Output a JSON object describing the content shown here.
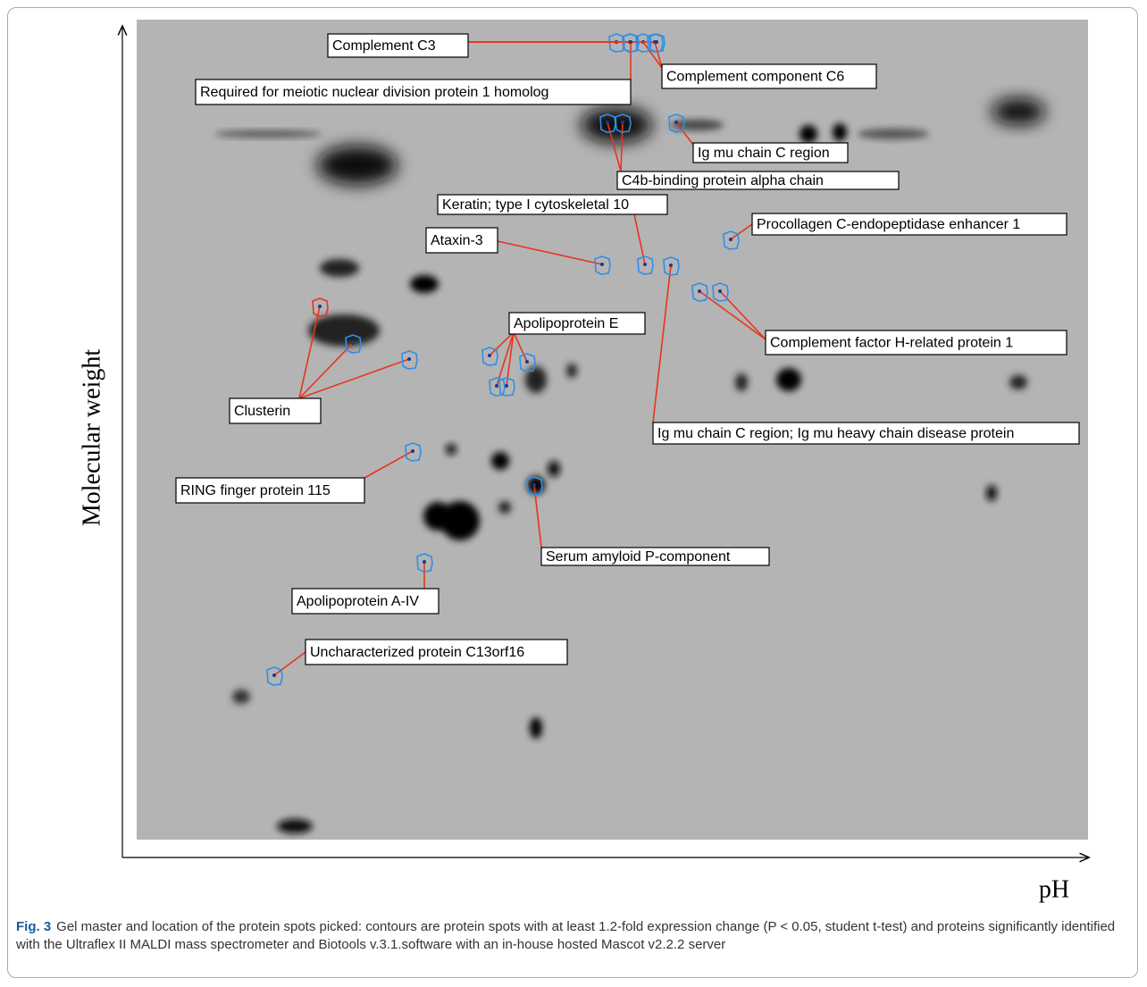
{
  "figure": {
    "axis_labels": {
      "y": "Molecular weight",
      "x": "pH"
    },
    "labels": [
      "Complement C3",
      "Required for meiotic nuclear division protein 1 homolog",
      "Complement component C6",
      "Ig mu chain C region",
      "C4b-binding protein alpha chain",
      "Keratin; type I cytoskeletal 10",
      "Procollagen C-endopeptidase enhancer 1",
      "Ataxin-3",
      "Apolipoprotein E",
      "Complement factor H-related protein 1",
      "Clusterin",
      "Ig mu chain C region; Ig mu heavy chain disease protein",
      "RING finger protein 115",
      "Serum amyloid P-component",
      "Apolipoprotein A-IV",
      "Uncharacterized protein C13orf16"
    ],
    "caption": {
      "label": "Fig. 3",
      "text": "Gel master and location of the protein spots picked: contours are protein spots with at least 1.2-fold expression change (P < 0.05, student t-test) and proteins significantly identified with the Ultraflex II MALDI mass spectrometer and Biotools v.3.1.software with an in-house hosted Mascot v2.2.2 server"
    }
  }
}
